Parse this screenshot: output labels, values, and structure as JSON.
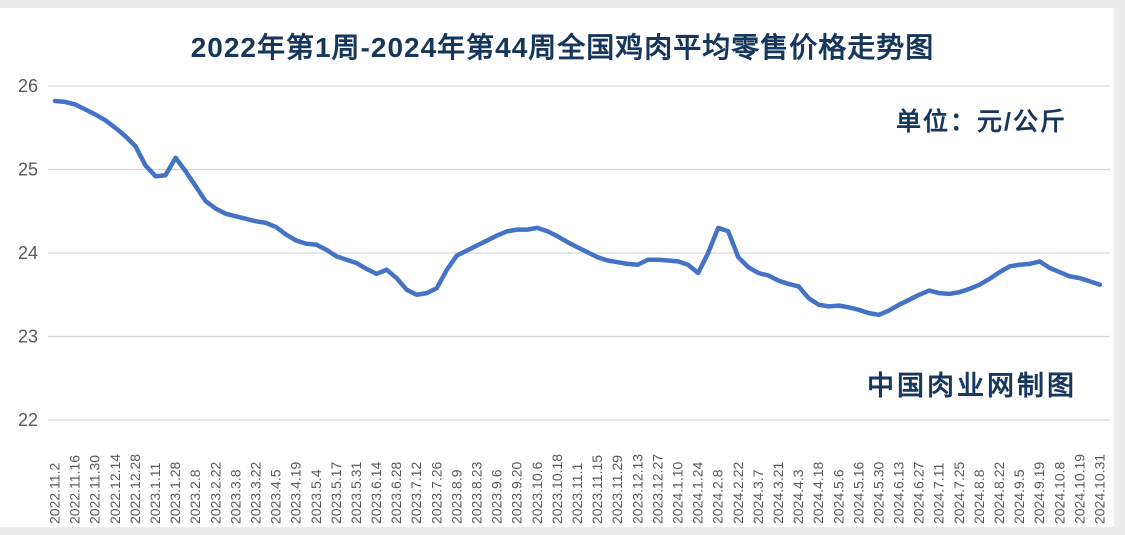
{
  "header": {
    "title": "2022年第1周-2024年第44周全国鸡肉平均零售价格走势图"
  },
  "annotations": {
    "unit_label": "单位：元/公斤",
    "watermark": "中国肉业网制图"
  },
  "colors": {
    "line": "#4472c4",
    "title_text": "#16365c",
    "annotation_text": "#17375e",
    "axis_text": "#595959",
    "gridline": "#d6d6d6",
    "frame": "#ececec"
  },
  "chart_data": {
    "type": "line",
    "title": "2022年第1周-2024年第44周全国鸡肉平均零售价格走势图",
    "xlabel": "",
    "ylabel": "元/公斤",
    "ylim": [
      22,
      26
    ],
    "yticks": [
      26,
      25,
      24,
      23,
      22
    ],
    "grid": true,
    "legend": "none",
    "x_labels_every_n_points": 2,
    "x_labels": [
      "2022.11.2",
      "2022.11.16",
      "2022.11.30",
      "2022.12.14",
      "2022.12.28",
      "2023.1.11",
      "2023.1.28",
      "2023.2.8",
      "2023.2.22",
      "2023.3.8",
      "2023.3.22",
      "2023.4.5",
      "2023.4.19",
      "2023.5.4",
      "2023.5.17",
      "2023.5.31",
      "2023.6.14",
      "2023.6.28",
      "2023.7.12",
      "2023.7.26",
      "2023.8.9",
      "2023.8.23",
      "2023.9.6",
      "2023.9.20",
      "2023.10.6",
      "2023.10.18",
      "2023.11.1",
      "2023.11.15",
      "2023.11.29",
      "2023.12.13",
      "2023.12.27",
      "2024.1.10",
      "2024.1.24",
      "2024.2.8",
      "2024.2.22",
      "2024.3.7",
      "2024.3.21",
      "2024.4.3",
      "2024.4.18",
      "2024.5.6",
      "2024.5.16",
      "2024.5.30",
      "2024.6.13",
      "2024.6.27",
      "2024.7.11",
      "2024.7.25",
      "2024.8.8",
      "2024.8.22",
      "2024.9.5",
      "2024.9.19",
      "2024.10.8",
      "2024.10.19",
      "2024.10.31"
    ],
    "series": [
      {
        "name": "全国鸡肉平均零售价格(元/公斤)",
        "values": [
          25.82,
          25.81,
          25.78,
          25.72,
          25.66,
          25.59,
          25.5,
          25.4,
          25.28,
          25.05,
          24.92,
          24.93,
          25.14,
          24.98,
          24.8,
          24.62,
          24.53,
          24.47,
          24.44,
          24.41,
          24.38,
          24.36,
          24.31,
          24.22,
          24.15,
          24.11,
          24.1,
          24.04,
          23.96,
          23.92,
          23.88,
          23.81,
          23.75,
          23.8,
          23.7,
          23.56,
          23.5,
          23.52,
          23.58,
          23.8,
          23.97,
          24.03,
          24.09,
          24.15,
          24.21,
          24.26,
          24.28,
          24.28,
          24.3,
          24.26,
          24.2,
          24.13,
          24.07,
          24.01,
          23.95,
          23.91,
          23.89,
          23.87,
          23.86,
          23.92,
          23.92,
          23.91,
          23.9,
          23.86,
          23.76,
          24.0,
          24.3,
          24.26,
          23.95,
          23.83,
          23.76,
          23.73,
          23.67,
          23.63,
          23.6,
          23.46,
          23.38,
          23.36,
          23.37,
          23.35,
          23.32,
          23.28,
          23.26,
          23.31,
          23.38,
          23.44,
          23.5,
          23.55,
          23.52,
          23.51,
          23.53,
          23.57,
          23.62,
          23.69,
          23.77,
          23.84,
          23.86,
          23.87,
          23.9,
          23.82,
          23.77,
          23.72,
          23.7,
          23.66,
          23.62
        ]
      }
    ]
  }
}
